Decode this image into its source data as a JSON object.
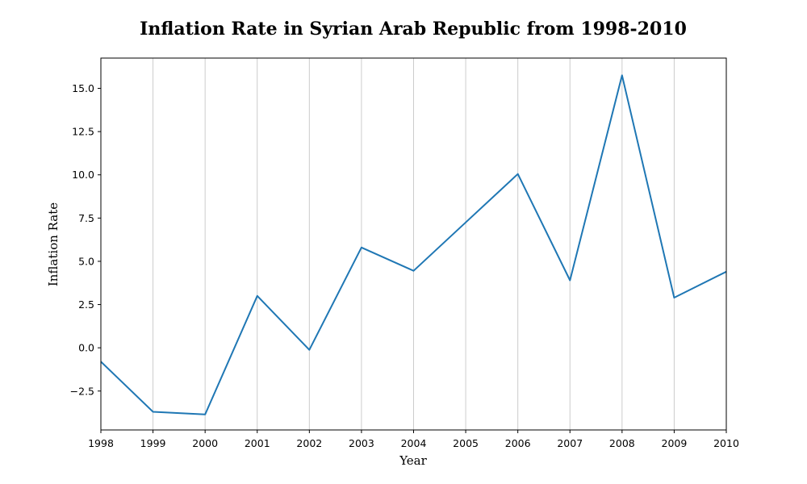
{
  "chart_data": {
    "type": "line",
    "title": "Inflation Rate in Syrian Arab Republic from 1998-2010",
    "xlabel": "Year",
    "ylabel": "Inflation Rate",
    "x": [
      1998,
      1999,
      2000,
      2001,
      2002,
      2003,
      2004,
      2005,
      2006,
      2007,
      2008,
      2009,
      2010
    ],
    "x_tick_labels": [
      "1998",
      "1999",
      "2000",
      "2001",
      "2002",
      "2003",
      "2004",
      "2005",
      "2006",
      "2007",
      "2008",
      "2009",
      "2010"
    ],
    "series": [
      {
        "name": "Inflation Rate",
        "values": [
          -0.8,
          -3.7,
          -3.85,
          3.0,
          -0.12,
          5.8,
          4.45,
          7.25,
          10.05,
          3.9,
          15.75,
          2.9,
          4.4
        ],
        "color": "#1f77b4"
      }
    ],
    "xlim": [
      1998,
      2010
    ],
    "ylim": [
      -4.75,
      16.75
    ],
    "y_ticks": [
      -2.5,
      0.0,
      2.5,
      5.0,
      7.5,
      10.0,
      12.5,
      15.0
    ],
    "y_tick_labels": [
      "−2.5",
      "0.0",
      "2.5",
      "5.0",
      "7.5",
      "10.0",
      "12.5",
      "15.0"
    ],
    "grid": "x-only",
    "grid_color": "#cccccc",
    "legend": "none"
  }
}
